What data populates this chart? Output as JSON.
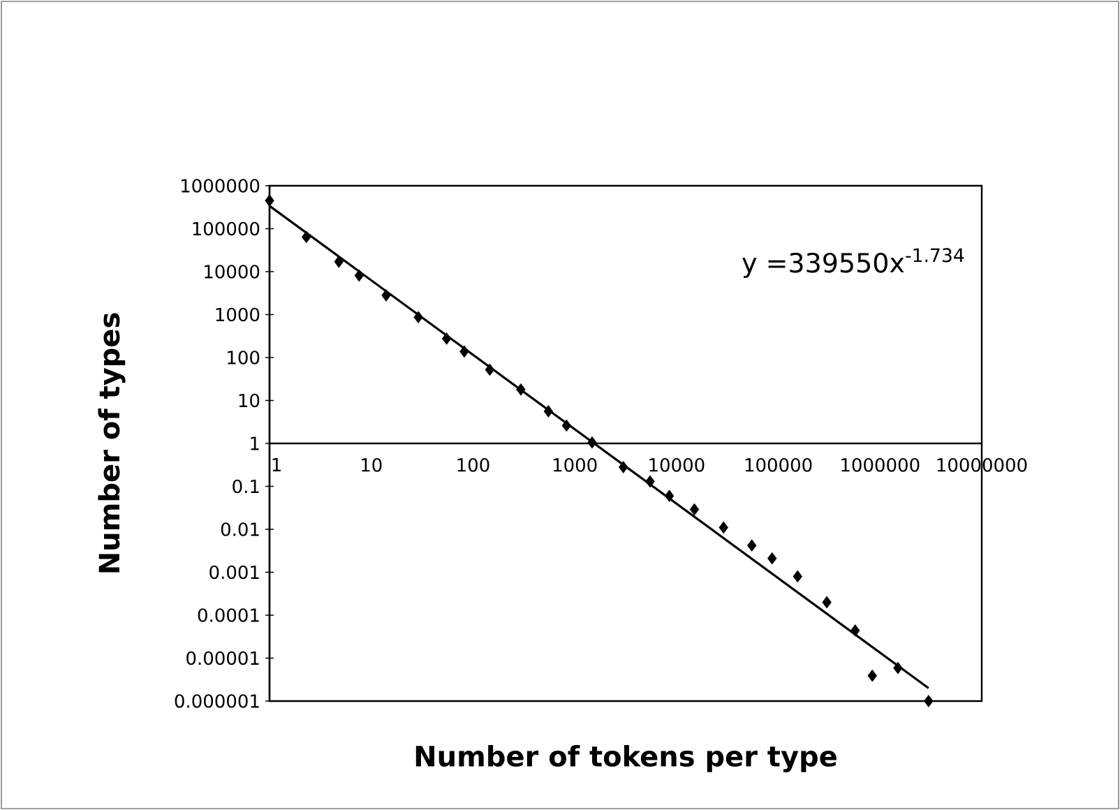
{
  "chart_data": {
    "type": "scatter",
    "log": "xy",
    "xlabel": "Number of tokens per type",
    "ylabel": "Number of types",
    "annotations": [
      "y =339550x$^{-1.734}$"
    ],
    "xlim": [
      1,
      10000000
    ],
    "ylim": [
      1e-06,
      1000000
    ],
    "xticks": [
      1,
      10,
      100,
      1000,
      10000,
      100000,
      1000000,
      10000000
    ],
    "yticks": [
      {
        "value": 1e-06,
        "label": "0.000001"
      },
      {
        "value": 1e-05,
        "label": "0.00001"
      },
      {
        "value": 0.0001,
        "label": "0.0001"
      },
      {
        "value": 0.001,
        "label": "0.001"
      },
      {
        "value": 0.01,
        "label": "0.01"
      },
      {
        "value": 0.1,
        "label": "0.1"
      },
      1,
      10,
      100,
      1000,
      10000,
      100000,
      1000000
    ],
    "series": [
      {
        "type": "scatter",
        "marker": "diamond",
        "color": "#000000",
        "x": [
          1,
          2.3,
          4.8,
          7.6,
          14,
          29,
          55,
          82,
          146,
          295,
          550,
          830,
          1480,
          3000,
          5500,
          8500,
          15000,
          29000,
          55000,
          87000,
          155000,
          300000,
          570000,
          840000,
          1500000,
          3000000
        ],
        "values": [
          450000,
          64000,
          17000,
          8100,
          2800,
          870,
          275,
          138,
          52,
          18,
          5.6,
          2.6,
          1.05,
          0.28,
          0.13,
          0.06,
          0.029,
          0.011,
          0.0042,
          0.0021,
          0.0008,
          0.0002,
          4.4e-05,
          3.9e-06,
          5.9e-06,
          1e-06
        ]
      },
      {
        "type": "line",
        "marker": "none",
        "color": "#000000",
        "x": [
          1,
          3000000
        ],
        "values": [
          339550,
          2e-06
        ]
      }
    ]
  }
}
